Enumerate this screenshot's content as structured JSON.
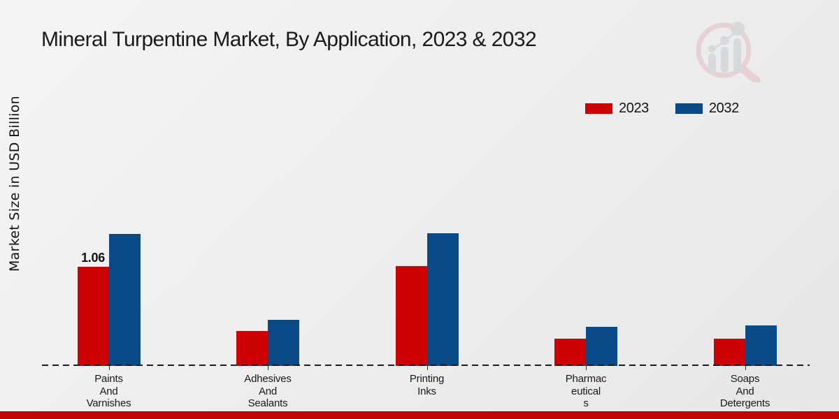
{
  "chart_data": {
    "type": "bar",
    "title": "Mineral Turpentine Market, By Application, 2023 & 2032",
    "ylabel": "Market Size in USD Billion",
    "xlabel": "",
    "categories": [
      "Paints And Varnishes",
      "Adhesives And Sealants",
      "Printing Inks",
      "Pharmaceuticals",
      "Soaps And Detergents"
    ],
    "category_label_lines": [
      [
        "Paints",
        "And",
        "Varnishes"
      ],
      [
        "Adhesives",
        "And",
        "Sealants"
      ],
      [
        "Printing",
        "Inks"
      ],
      [
        "Pharmac",
        "eutical",
        "s"
      ],
      [
        "Soaps",
        "And",
        "Detergents"
      ]
    ],
    "series": [
      {
        "name": "2023",
        "color": "#cc0205",
        "values": [
          1.06,
          0.37,
          1.07,
          0.29,
          0.29
        ]
      },
      {
        "name": "2032",
        "color": "#0a4b87",
        "values": [
          1.41,
          0.49,
          1.42,
          0.42,
          0.43
        ]
      }
    ],
    "data_labels": [
      {
        "series_index": 0,
        "category_index": 0,
        "text": "1.06"
      }
    ],
    "ylim": [
      0,
      1.5
    ],
    "grid": false,
    "baseline_style": "dashed",
    "legend_position": "top-right"
  },
  "branding": {
    "logo_icon": "magnifier-bar-chart-logo",
    "logo_ring_color": "#e2bcc2",
    "logo_bar_color": "#c9cbd0",
    "footer_bar_color": "#c10606"
  }
}
